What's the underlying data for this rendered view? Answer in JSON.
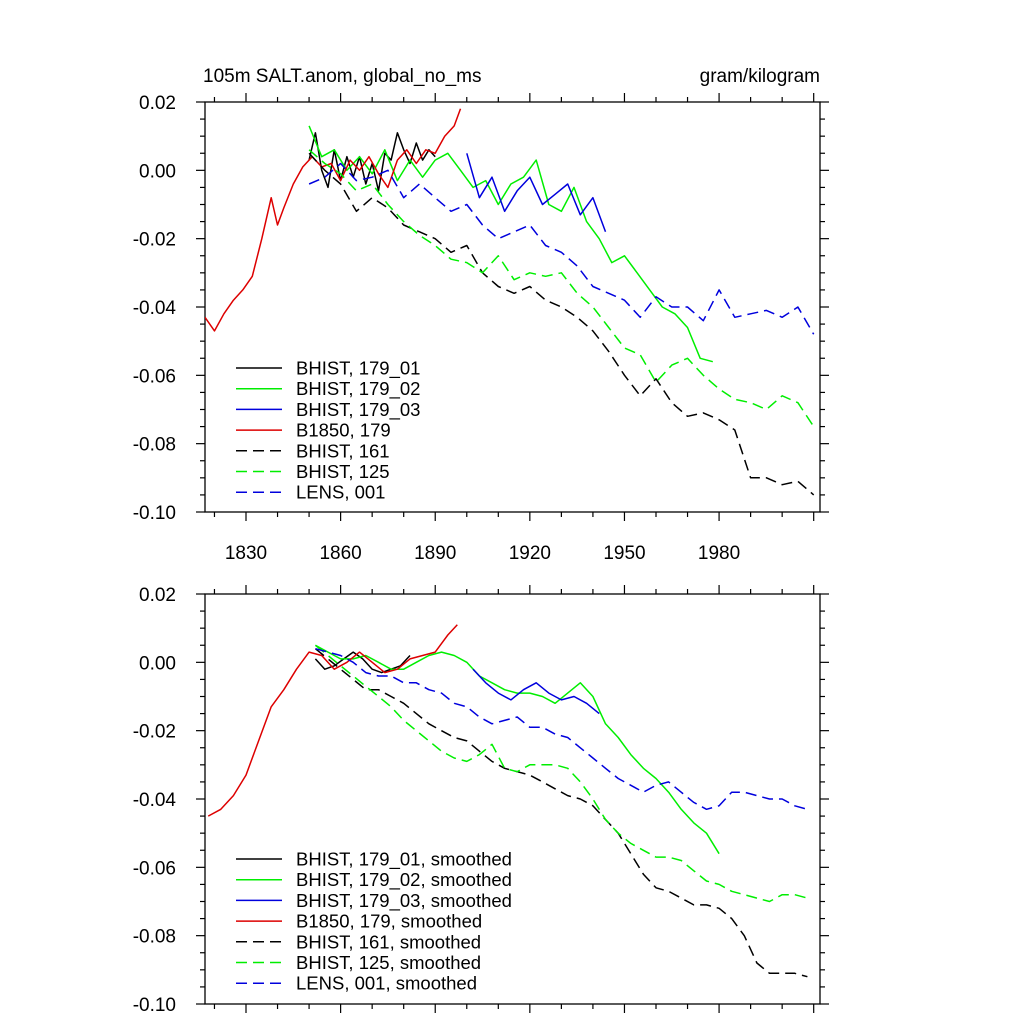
{
  "chart_data": [
    {
      "type": "line",
      "title_left": "105m SALT.anom, global_no_ms",
      "title_right": "gram/kilogram",
      "xlim": [
        1817,
        2012
      ],
      "ylim": [
        -0.1,
        0.02
      ],
      "x_ticks": [
        1830,
        1860,
        1890,
        1920,
        1950,
        1980
      ],
      "x_tick_labels": [
        "1830",
        "1860",
        "1890",
        "1920",
        "1950",
        "1980"
      ],
      "y_ticks": [
        0.02,
        0.0,
        -0.02,
        -0.04,
        -0.06,
        -0.08,
        -0.1
      ],
      "y_tick_labels": [
        "0.02",
        "0.00",
        "-0.02",
        "-0.04",
        "-0.06",
        "-0.08",
        "-0.10"
      ],
      "legend_position": "bottom-left",
      "series": [
        {
          "name": "BHIST, 179_01",
          "color": "#000000",
          "dash": "solid",
          "x": [
            1850,
            1852,
            1854,
            1856,
            1858,
            1860,
            1862,
            1864,
            1866,
            1868,
            1870,
            1872,
            1874,
            1876,
            1878,
            1880,
            1882,
            1884,
            1886,
            1888,
            1890
          ],
          "y": [
            0.003,
            0.011,
            0.0,
            -0.005,
            0.006,
            -0.003,
            0.004,
            -0.002,
            0.004,
            -0.004,
            0.002,
            -0.006,
            0.005,
            0.003,
            0.011,
            0.006,
            0.002,
            0.008,
            0.003,
            0.006,
            0.004
          ]
        },
        {
          "name": "BHIST, 179_02",
          "color": "#00ee00",
          "dash": "solid",
          "x": [
            1850,
            1854,
            1858,
            1862,
            1866,
            1870,
            1874,
            1878,
            1882,
            1886,
            1890,
            1894,
            1898,
            1902,
            1906,
            1910,
            1914,
            1918,
            1922,
            1926,
            1930,
            1934,
            1938,
            1942,
            1946,
            1950,
            1954,
            1958,
            1962,
            1966,
            1970,
            1974,
            1978
          ],
          "y": [
            0.013,
            0.004,
            0.006,
            0.0,
            0.004,
            -0.001,
            0.006,
            -0.003,
            0.003,
            -0.002,
            0.003,
            0.005,
            0.0,
            -0.005,
            -0.003,
            -0.01,
            -0.004,
            -0.002,
            0.003,
            -0.01,
            -0.012,
            -0.005,
            -0.015,
            -0.02,
            -0.027,
            -0.025,
            -0.03,
            -0.035,
            -0.04,
            -0.042,
            -0.046,
            -0.055,
            -0.056
          ]
        },
        {
          "name": "BHIST, 179_03",
          "color": "#0000dd",
          "dash": "solid",
          "x": [
            1900,
            1904,
            1908,
            1912,
            1916,
            1920,
            1924,
            1928,
            1932,
            1936,
            1940,
            1944
          ],
          "y": [
            0.005,
            -0.008,
            -0.002,
            -0.012,
            -0.006,
            -0.002,
            -0.01,
            -0.007,
            -0.004,
            -0.013,
            -0.008,
            -0.018
          ]
        },
        {
          "name": "B1850, 179",
          "color": "#dd0000",
          "dash": "solid",
          "x": [
            1817,
            1820,
            1823,
            1826,
            1829,
            1832,
            1835,
            1838,
            1840,
            1842,
            1845,
            1848,
            1851,
            1854,
            1857,
            1860,
            1863,
            1866,
            1869,
            1872,
            1875,
            1878,
            1881,
            1884,
            1887,
            1890,
            1893,
            1896,
            1898
          ],
          "y": [
            -0.043,
            -0.047,
            -0.042,
            -0.038,
            -0.035,
            -0.031,
            -0.02,
            -0.008,
            -0.016,
            -0.011,
            -0.004,
            0.001,
            0.004,
            0.001,
            0.002,
            -0.003,
            0.003,
            0.0,
            0.004,
            -0.001,
            -0.005,
            0.003,
            0.006,
            0.002,
            0.006,
            0.005,
            0.01,
            0.013,
            0.018
          ]
        },
        {
          "name": "BHIST, 161",
          "color": "#000000",
          "dash": "dashed",
          "x": [
            1850,
            1855,
            1860,
            1865,
            1870,
            1875,
            1880,
            1885,
            1890,
            1895,
            1900,
            1905,
            1910,
            1915,
            1920,
            1925,
            1930,
            1935,
            1940,
            1945,
            1950,
            1955,
            1960,
            1965,
            1970,
            1975,
            1980,
            1985,
            1990,
            1995,
            2000,
            2005,
            2010
          ],
          "y": [
            0.005,
            0.0,
            -0.004,
            -0.012,
            -0.008,
            -0.011,
            -0.016,
            -0.018,
            -0.02,
            -0.024,
            -0.022,
            -0.03,
            -0.034,
            -0.036,
            -0.034,
            -0.038,
            -0.04,
            -0.043,
            -0.047,
            -0.053,
            -0.06,
            -0.066,
            -0.061,
            -0.068,
            -0.072,
            -0.071,
            -0.073,
            -0.076,
            -0.09,
            -0.09,
            -0.092,
            -0.091,
            -0.095
          ]
        },
        {
          "name": "BHIST, 125",
          "color": "#00ee00",
          "dash": "dashed",
          "x": [
            1850,
            1855,
            1860,
            1865,
            1870,
            1875,
            1880,
            1885,
            1890,
            1895,
            1900,
            1905,
            1910,
            1915,
            1920,
            1925,
            1930,
            1935,
            1940,
            1945,
            1950,
            1955,
            1960,
            1965,
            1970,
            1975,
            1980,
            1985,
            1990,
            1995,
            2000,
            2005,
            2010
          ],
          "y": [
            0.006,
            0.002,
            -0.001,
            -0.006,
            -0.004,
            -0.01,
            -0.015,
            -0.019,
            -0.022,
            -0.026,
            -0.027,
            -0.03,
            -0.025,
            -0.032,
            -0.03,
            -0.031,
            -0.03,
            -0.036,
            -0.04,
            -0.046,
            -0.052,
            -0.054,
            -0.062,
            -0.057,
            -0.055,
            -0.06,
            -0.064,
            -0.067,
            -0.068,
            -0.07,
            -0.066,
            -0.068,
            -0.075
          ]
        },
        {
          "name": "LENS, 001",
          "color": "#0000dd",
          "dash": "dashed",
          "x": [
            1850,
            1855,
            1860,
            1865,
            1870,
            1875,
            1880,
            1885,
            1890,
            1895,
            1900,
            1905,
            1910,
            1915,
            1920,
            1925,
            1930,
            1935,
            1940,
            1945,
            1950,
            1955,
            1960,
            1965,
            1970,
            1975,
            1980,
            1985,
            1990,
            1995,
            2000,
            2005,
            2010
          ],
          "y": [
            -0.004,
            -0.002,
            0.002,
            -0.003,
            -0.002,
            0.0,
            -0.008,
            -0.004,
            -0.008,
            -0.012,
            -0.01,
            -0.016,
            -0.02,
            -0.018,
            -0.016,
            -0.022,
            -0.024,
            -0.028,
            -0.034,
            -0.036,
            -0.038,
            -0.043,
            -0.037,
            -0.04,
            -0.04,
            -0.044,
            -0.035,
            -0.043,
            -0.042,
            -0.041,
            -0.043,
            -0.04,
            -0.048
          ]
        }
      ]
    },
    {
      "type": "line",
      "xlim": [
        1817,
        2012
      ],
      "ylim": [
        -0.1,
        0.02
      ],
      "x_ticks": [
        1830,
        1860,
        1890,
        1920,
        1950,
        1980
      ],
      "y_ticks": [
        0.02,
        0.0,
        -0.02,
        -0.04,
        -0.06,
        -0.08,
        -0.1
      ],
      "y_tick_labels": [
        "0.02",
        "0.00",
        "-0.02",
        "-0.04",
        "-0.06",
        "-0.08",
        "-0.10"
      ],
      "legend_position": "bottom-left",
      "series": [
        {
          "name": "BHIST, 179_01, smoothed",
          "color": "#000000",
          "dash": "solid",
          "x": [
            1852,
            1855,
            1858,
            1861,
            1864,
            1867,
            1870,
            1873,
            1876,
            1879,
            1882
          ],
          "y": [
            0.001,
            -0.002,
            -0.001,
            0.001,
            0.003,
            0.001,
            -0.002,
            -0.003,
            -0.002,
            -0.001,
            0.002
          ]
        },
        {
          "name": "BHIST, 179_02, smoothed",
          "color": "#00ee00",
          "dash": "solid",
          "x": [
            1852,
            1856,
            1860,
            1864,
            1868,
            1872,
            1876,
            1880,
            1884,
            1888,
            1892,
            1896,
            1900,
            1904,
            1908,
            1912,
            1916,
            1920,
            1924,
            1928,
            1932,
            1936,
            1940,
            1944,
            1948,
            1952,
            1956,
            1960,
            1964,
            1968,
            1972,
            1976,
            1980
          ],
          "y": [
            0.005,
            0.003,
            0.001,
            0.001,
            0.002,
            0.0,
            -0.002,
            -0.002,
            0.0,
            0.002,
            0.003,
            0.002,
            0.0,
            -0.004,
            -0.006,
            -0.008,
            -0.009,
            -0.009,
            -0.01,
            -0.012,
            -0.009,
            -0.006,
            -0.01,
            -0.018,
            -0.022,
            -0.027,
            -0.031,
            -0.034,
            -0.038,
            -0.043,
            -0.047,
            -0.05,
            -0.056
          ]
        },
        {
          "name": "BHIST, 179_03, smoothed",
          "color": "#0000dd",
          "dash": "solid",
          "x": [
            1902,
            1906,
            1910,
            1914,
            1918,
            1922,
            1926,
            1930,
            1934,
            1938,
            1942
          ],
          "y": [
            -0.002,
            -0.006,
            -0.009,
            -0.011,
            -0.008,
            -0.006,
            -0.009,
            -0.011,
            -0.01,
            -0.012,
            -0.015
          ]
        },
        {
          "name": "B1850, 179, smoothed",
          "color": "#dd0000",
          "dash": "solid",
          "x": [
            1818,
            1822,
            1826,
            1830,
            1834,
            1838,
            1842,
            1846,
            1850,
            1854,
            1858,
            1862,
            1866,
            1870,
            1874,
            1878,
            1882,
            1886,
            1890,
            1894,
            1897
          ],
          "y": [
            -0.045,
            -0.043,
            -0.039,
            -0.033,
            -0.023,
            -0.013,
            -0.008,
            -0.002,
            0.003,
            0.002,
            -0.002,
            0.0,
            0.003,
            0.0,
            -0.003,
            -0.002,
            0.001,
            0.002,
            0.003,
            0.008,
            0.011
          ]
        },
        {
          "name": "BHIST, 161, smoothed",
          "color": "#000000",
          "dash": "dashed",
          "x": [
            1852,
            1856,
            1860,
            1864,
            1868,
            1872,
            1876,
            1880,
            1884,
            1888,
            1892,
            1896,
            1900,
            1904,
            1908,
            1912,
            1916,
            1920,
            1924,
            1928,
            1932,
            1936,
            1940,
            1944,
            1948,
            1952,
            1956,
            1960,
            1964,
            1968,
            1972,
            1976,
            1980,
            1984,
            1988,
            1992,
            1996,
            2000,
            2004,
            2008
          ],
          "y": [
            0.004,
            0.001,
            -0.002,
            -0.005,
            -0.008,
            -0.008,
            -0.01,
            -0.012,
            -0.015,
            -0.018,
            -0.02,
            -0.022,
            -0.023,
            -0.026,
            -0.029,
            -0.031,
            -0.032,
            -0.033,
            -0.035,
            -0.037,
            -0.039,
            -0.04,
            -0.042,
            -0.046,
            -0.05,
            -0.056,
            -0.062,
            -0.066,
            -0.067,
            -0.069,
            -0.071,
            -0.071,
            -0.072,
            -0.075,
            -0.08,
            -0.088,
            -0.091,
            -0.091,
            -0.091,
            -0.092
          ]
        },
        {
          "name": "BHIST, 125, smoothed",
          "color": "#00ee00",
          "dash": "dashed",
          "x": [
            1852,
            1856,
            1860,
            1864,
            1868,
            1872,
            1876,
            1880,
            1884,
            1888,
            1892,
            1896,
            1900,
            1904,
            1908,
            1912,
            1916,
            1920,
            1924,
            1928,
            1932,
            1936,
            1940,
            1944,
            1948,
            1952,
            1956,
            1960,
            1964,
            1968,
            1972,
            1976,
            1980,
            1984,
            1988,
            1992,
            1996,
            2000,
            2004,
            2008
          ],
          "y": [
            0.005,
            0.002,
            -0.001,
            -0.004,
            -0.007,
            -0.01,
            -0.013,
            -0.017,
            -0.02,
            -0.023,
            -0.026,
            -0.028,
            -0.029,
            -0.027,
            -0.024,
            -0.031,
            -0.032,
            -0.03,
            -0.03,
            -0.03,
            -0.031,
            -0.035,
            -0.04,
            -0.046,
            -0.05,
            -0.053,
            -0.055,
            -0.057,
            -0.057,
            -0.058,
            -0.061,
            -0.064,
            -0.065,
            -0.067,
            -0.068,
            -0.069,
            -0.07,
            -0.068,
            -0.068,
            -0.069
          ]
        },
        {
          "name": "LENS, 001, smoothed",
          "color": "#0000dd",
          "dash": "dashed",
          "x": [
            1852,
            1856,
            1860,
            1864,
            1868,
            1872,
            1876,
            1880,
            1884,
            1888,
            1892,
            1896,
            1900,
            1904,
            1908,
            1912,
            1916,
            1920,
            1924,
            1928,
            1932,
            1936,
            1940,
            1944,
            1948,
            1952,
            1956,
            1960,
            1964,
            1968,
            1972,
            1976,
            1980,
            1984,
            1988,
            1992,
            1996,
            2000,
            2004,
            2008
          ],
          "y": [
            0.004,
            0.003,
            0.002,
            0.0,
            -0.003,
            -0.004,
            -0.004,
            -0.006,
            -0.006,
            -0.008,
            -0.009,
            -0.012,
            -0.013,
            -0.016,
            -0.018,
            -0.017,
            -0.016,
            -0.019,
            -0.019,
            -0.021,
            -0.022,
            -0.025,
            -0.028,
            -0.031,
            -0.034,
            -0.036,
            -0.038,
            -0.036,
            -0.035,
            -0.038,
            -0.041,
            -0.043,
            -0.042,
            -0.038,
            -0.038,
            -0.039,
            -0.04,
            -0.04,
            -0.042,
            -0.043
          ]
        }
      ]
    }
  ]
}
